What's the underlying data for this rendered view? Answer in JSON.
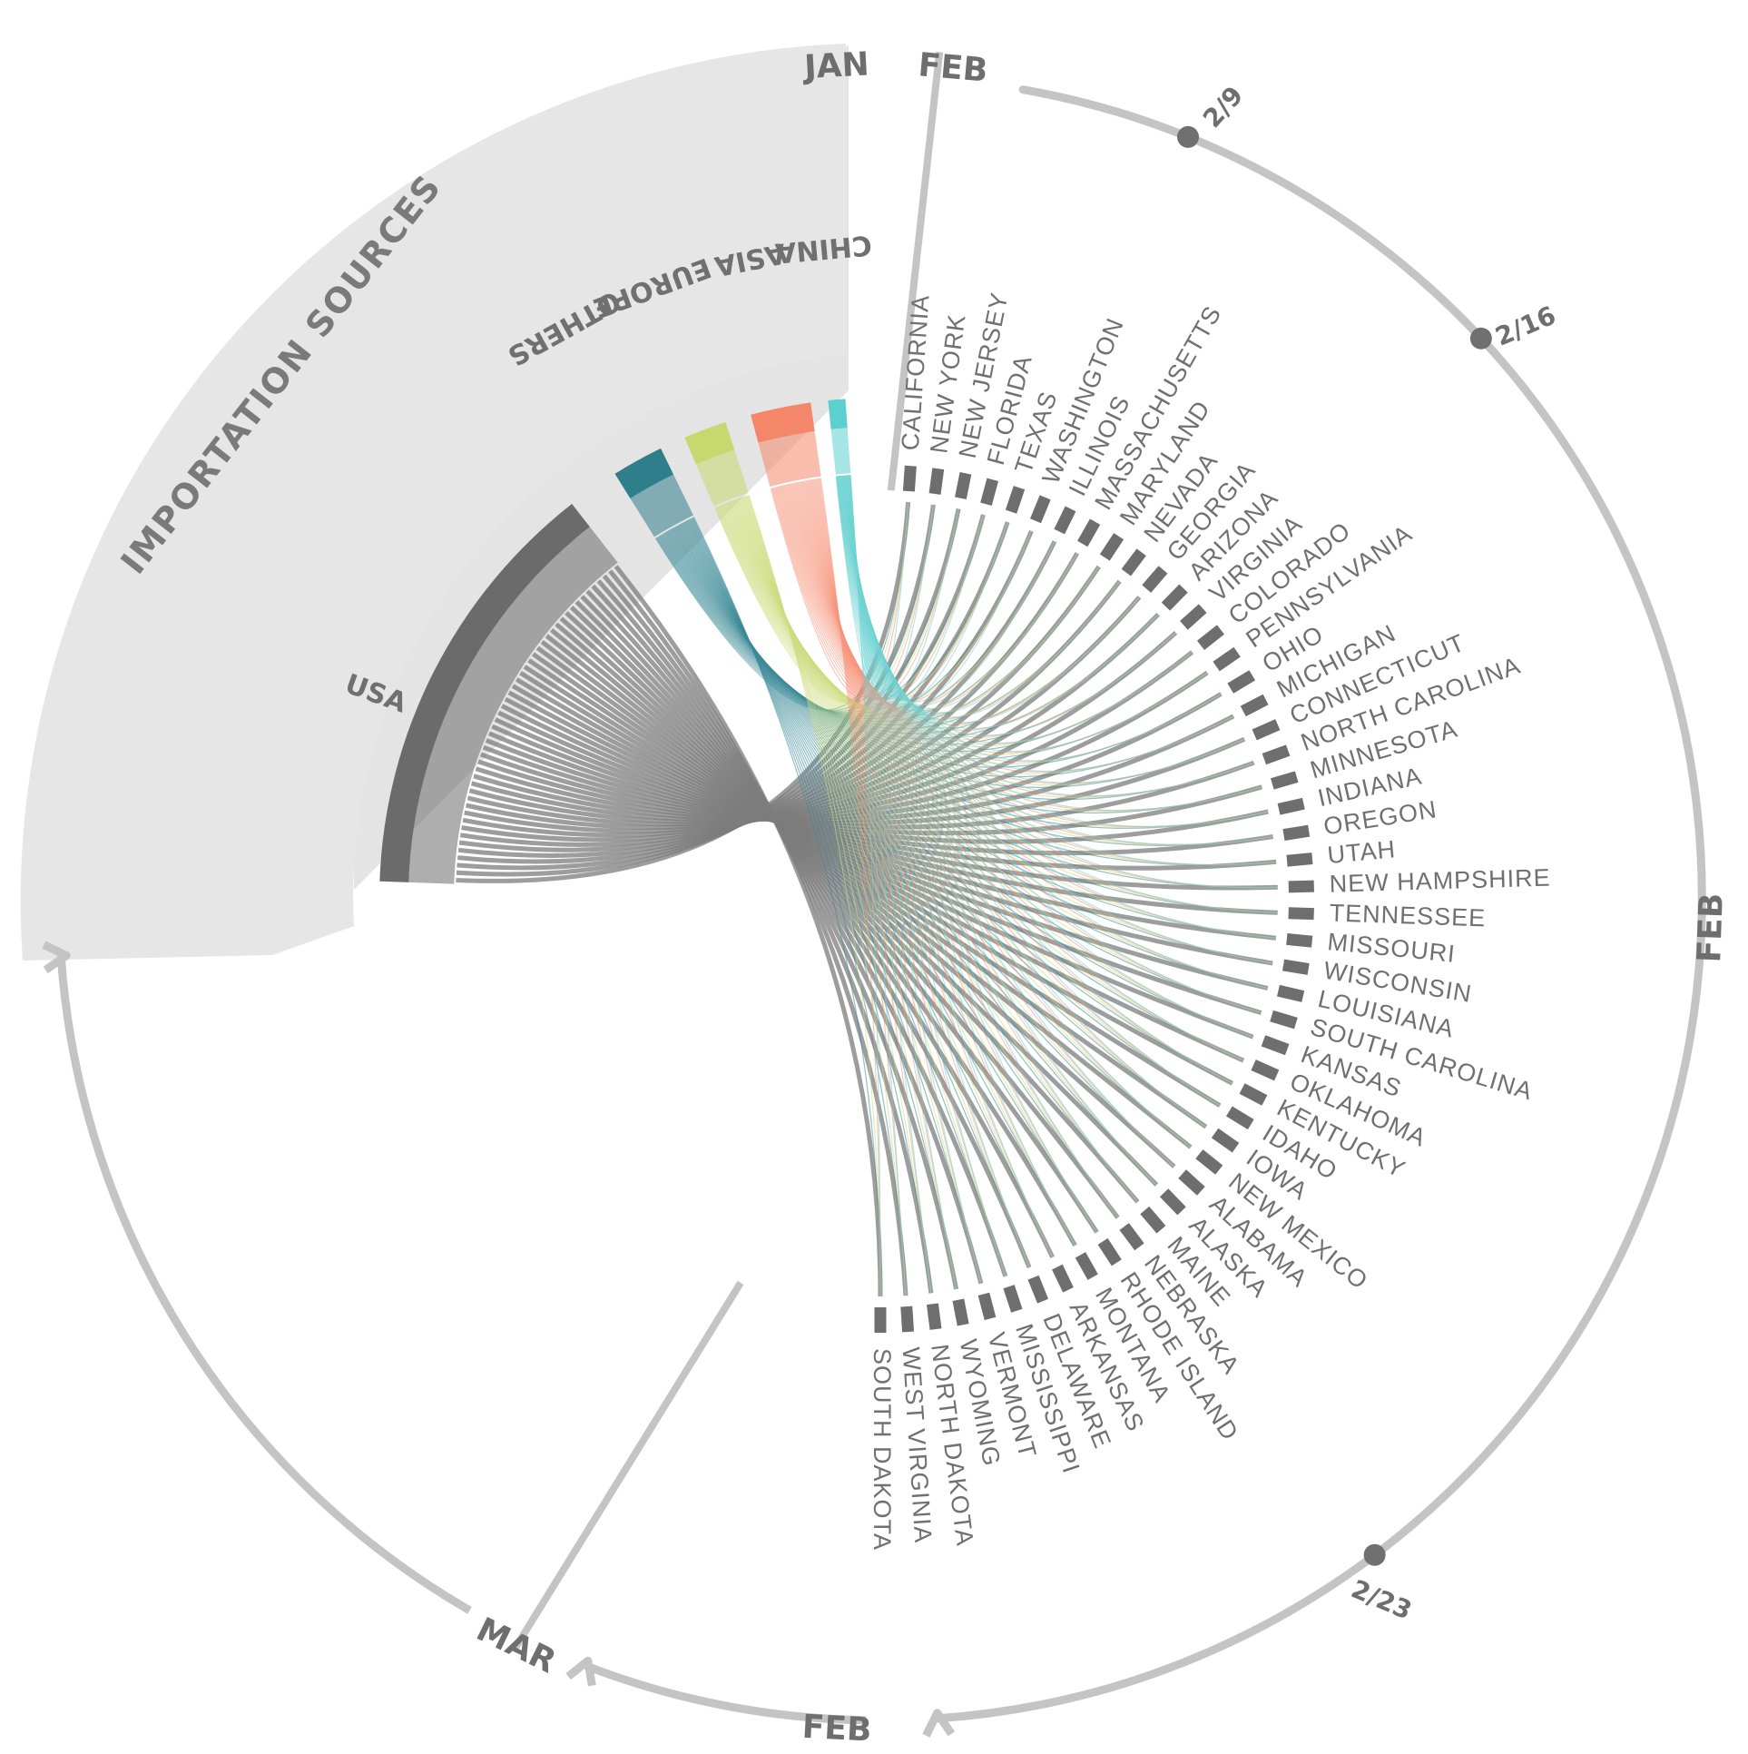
{
  "title": "IMPORTATION SOURCES",
  "sources": [
    {
      "name": "USA",
      "color": "#6b6b6b",
      "flow_color": "#7c7c7c"
    },
    {
      "name": "OTHERS",
      "color": "#2f7e8c",
      "flow_color": "#3d8a97"
    },
    {
      "name": "EUROPE",
      "color": "#c6d86e",
      "flow_color": "#cddc80"
    },
    {
      "name": "ASIA",
      "color": "#f4866a",
      "flow_color": "#f6957c"
    },
    {
      "name": "CHINA",
      "color": "#5ccfcf",
      "flow_color": "#6fd4d4"
    }
  ],
  "states": [
    "CALIFORNIA",
    "NEW YORK",
    "NEW JERSEY",
    "FLORIDA",
    "TEXAS",
    "WASHINGTON",
    "ILLINOIS",
    "MASSACHUSETTS",
    "MARYLAND",
    "NEVADA",
    "GEORGIA",
    "ARIZONA",
    "VIRGINIA",
    "COLORADO",
    "PENNSYLVANIA",
    "OHIO",
    "MICHIGAN",
    "CONNECTICUT",
    "NORTH CAROLINA",
    "MINNESOTA",
    "INDIANA",
    "OREGON",
    "UTAH",
    "NEW HAMPSHIRE",
    "TENNESSEE",
    "MISSOURI",
    "WISCONSIN",
    "LOUISIANA",
    "SOUTH CAROLINA",
    "KANSAS",
    "OKLAHOMA",
    "KENTUCKY",
    "IDAHO",
    "IOWA",
    "NEW MEXICO",
    "ALABAMA",
    "ALASKA",
    "MAINE",
    "NEBRASKA",
    "RHODE ISLAND",
    "MONTANA",
    "ARKANSAS",
    "DELAWARE",
    "MISSISSIPPI",
    "VERMONT",
    "WYOMING",
    "NORTH DAKOTA",
    "WEST VIRGINIA",
    "SOUTH DAKOTA"
  ],
  "timeline": {
    "months": [
      "JAN",
      "FEB",
      "FEB",
      "FEB",
      "MAR"
    ],
    "dates": [
      "2/9",
      "2/16",
      "2/23"
    ]
  }
}
